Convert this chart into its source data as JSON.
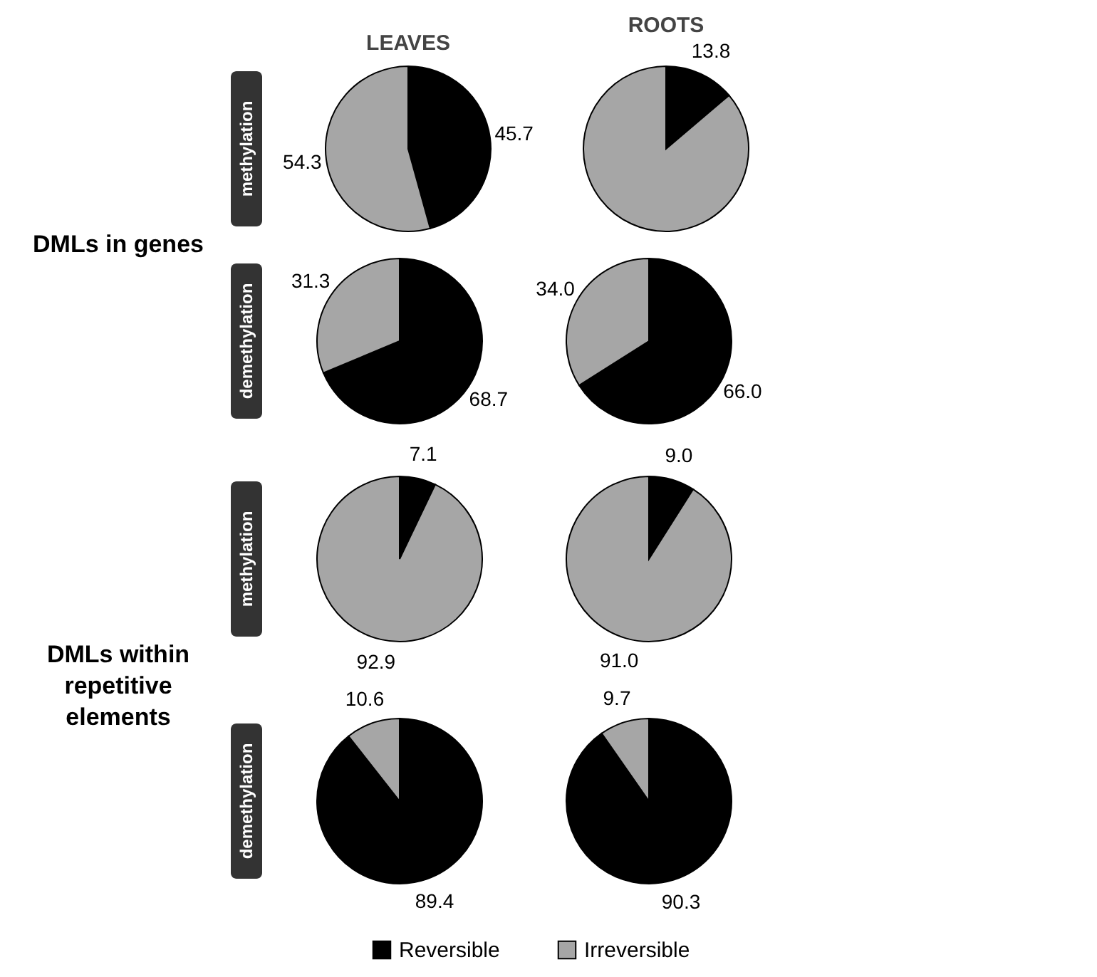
{
  "chart_data": [
    {
      "type": "pie",
      "title": "LEAVES",
      "ylabel": "methylation",
      "annotations": [
        "DMLs in genes"
      ],
      "categories": [
        null,
        null
      ],
      "values": [
        45.7,
        54.3
      ],
      "value_labels": [
        "45.7",
        "54.3"
      ],
      "colors": [
        "#000000",
        "#a6a6a6"
      ]
    },
    {
      "type": "pie",
      "title": "ROOTS",
      "categories": [
        null,
        null
      ],
      "values": [
        13.8,
        86.2
      ],
      "value_labels": [
        "13.8",
        null
      ],
      "colors": [
        "#000000",
        "#a6a6a6"
      ]
    },
    {
      "type": "pie",
      "ylabel": "demethylation",
      "categories": [
        null,
        null
      ],
      "values": [
        68.7,
        31.3
      ],
      "value_labels": [
        "68.7",
        "31.3"
      ],
      "colors": [
        "#000000",
        "#a6a6a6"
      ]
    },
    {
      "type": "pie",
      "categories": [
        null,
        null
      ],
      "values": [
        66.0,
        34.0
      ],
      "value_labels": [
        "66.0",
        "34.0"
      ],
      "colors": [
        "#000000",
        "#a6a6a6"
      ]
    },
    {
      "type": "pie",
      "ylabel": "methylation",
      "annotations": [
        "DMLs within repetitive elements"
      ],
      "categories": [
        null,
        null
      ],
      "values": [
        7.1,
        92.9
      ],
      "value_labels": [
        "7.1",
        "92.9"
      ],
      "colors": [
        "#000000",
        "#a6a6a6"
      ]
    },
    {
      "type": "pie",
      "categories": [
        null,
        null
      ],
      "values": [
        9.0,
        91.0
      ],
      "value_labels": [
        "9.0",
        "91.0"
      ],
      "colors": [
        "#000000",
        "#a6a6a6"
      ]
    },
    {
      "type": "pie",
      "ylabel": "demethylation",
      "categories": [
        null,
        null
      ],
      "values": [
        89.4,
        10.6
      ],
      "value_labels": [
        "89.4",
        "10.6"
      ],
      "colors": [
        "#000000",
        "#a6a6a6"
      ]
    },
    {
      "type": "pie",
      "legend": "bottom",
      "categories": [
        "Reversible",
        "Irreversible"
      ],
      "values": [
        90.3,
        9.7
      ],
      "value_labels": [
        "90.3",
        "9.7"
      ],
      "colors": [
        "#000000",
        "#a6a6a6"
      ]
    }
  ]
}
